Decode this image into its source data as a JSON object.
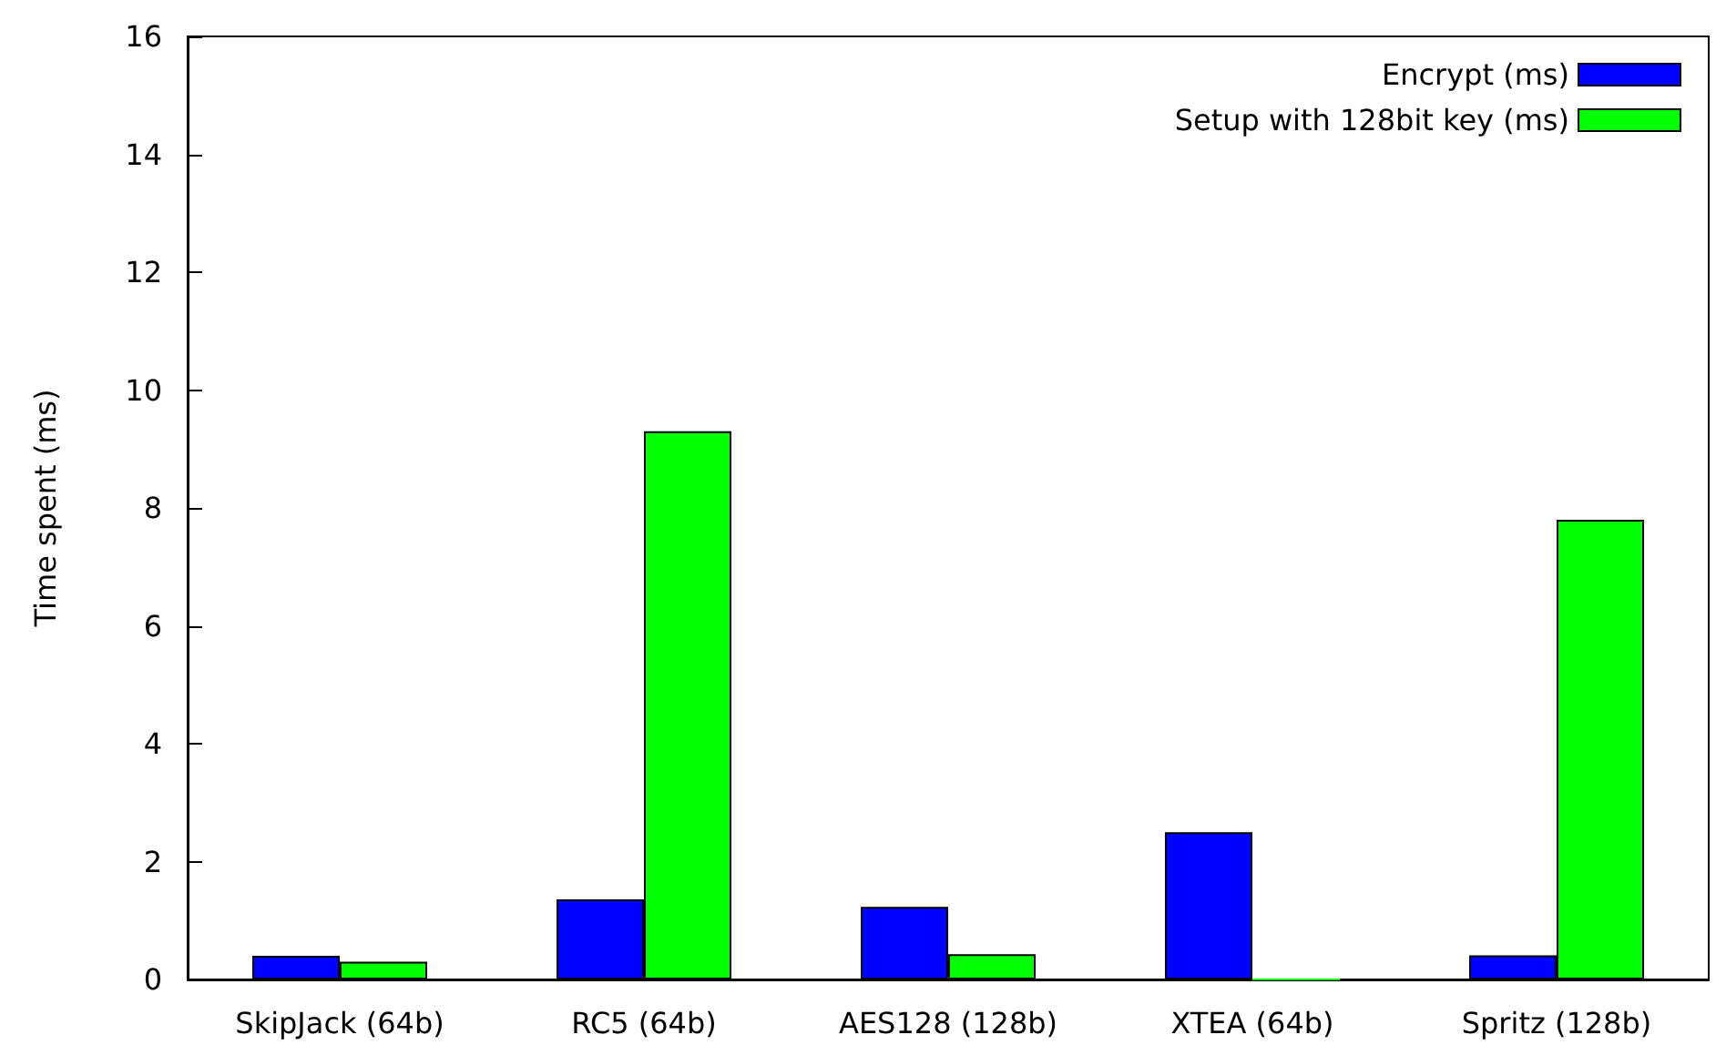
{
  "chart_data": {
    "type": "bar",
    "ylabel": "Time spent (ms)",
    "categories": [
      "SkipJack (64b)",
      "RC5 (64b)",
      "AES128 (128b)",
      "XTEA (64b)",
      "Spritz (128b)"
    ],
    "series": [
      {
        "name": "Encrypt (ms)",
        "color": "#0000ff",
        "values": [
          0.4,
          1.36,
          1.23,
          2.5,
          0.41
        ]
      },
      {
        "name": "Setup with 128bit key (ms)",
        "color": "#00ff00",
        "values": [
          0.3,
          9.3,
          0.43,
          0,
          7.8
        ]
      }
    ],
    "ylim": [
      0,
      16
    ],
    "yticks": [
      0,
      2,
      4,
      6,
      8,
      10,
      12,
      14,
      16
    ],
    "grid": false,
    "legend": "top right"
  }
}
